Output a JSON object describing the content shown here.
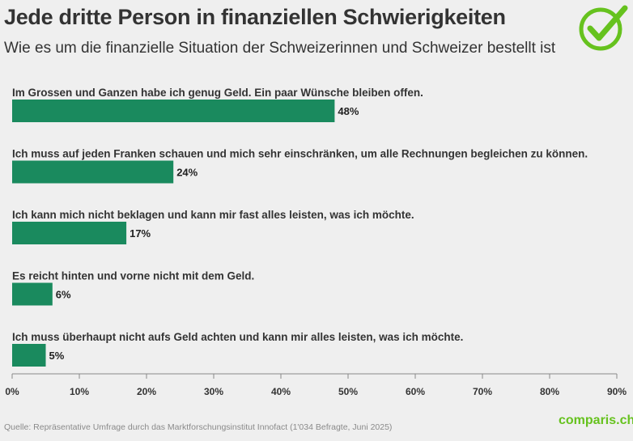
{
  "header": {
    "title": "Jede dritte Person in finanziellen Schwierigkeiten",
    "subtitle": "Wie es um die finanzielle Situation der Schweizerinnen und Schweizer bestellt ist"
  },
  "logo": {
    "icon": "checkmark-circle-icon",
    "color": "#66c21e"
  },
  "chart_data": {
    "type": "bar",
    "orientation": "horizontal",
    "categories": [
      "Im Grossen und Ganzen habe ich genug Geld. Ein paar Wünsche bleiben offen.",
      "Ich muss auf jeden Franken schauen und mich sehr einschränken, um alle Rechnungen begleichen zu können.",
      "Ich kann mich nicht beklagen und kann mir fast alles leisten, was ich möchte.",
      "Es reicht hinten und vorne nicht mit dem Geld.",
      "Ich muss überhaupt nicht aufs Geld achten und kann mir alles leisten, was ich möchte."
    ],
    "values": [
      48,
      24,
      17,
      6,
      5
    ],
    "value_labels": [
      "48%",
      "24%",
      "17%",
      "6%",
      "5%"
    ],
    "xlim": [
      0,
      90
    ],
    "ticks": [
      0,
      10,
      20,
      30,
      40,
      50,
      60,
      70,
      80,
      90
    ],
    "tick_labels": [
      "0%",
      "10%",
      "20%",
      "30%",
      "40%",
      "50%",
      "60%",
      "70%",
      "80%",
      "90%"
    ],
    "bar_color": "#1a8a5e",
    "grid": false
  },
  "footer": {
    "source": "Quelle: Repräsentative Umfrage durch das Marktforschungsinstitut Innofact (1'034 Befragte, Juni 2025)",
    "brand": "comparis.ch"
  }
}
